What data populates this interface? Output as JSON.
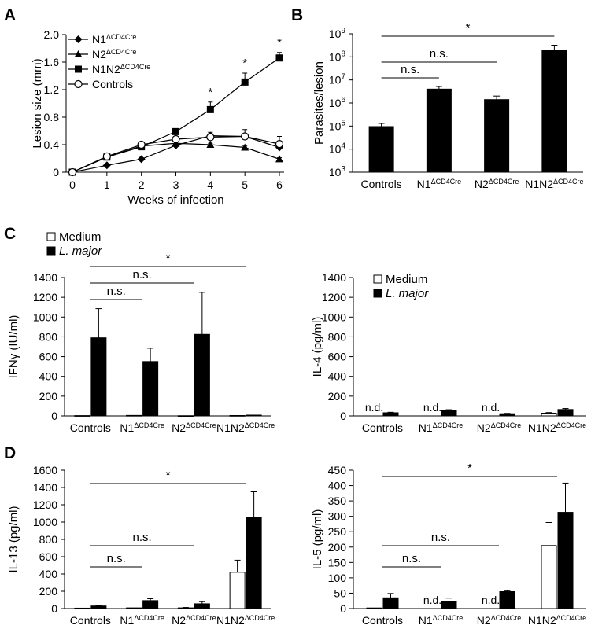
{
  "figure": {
    "panel_letters": [
      "A",
      "B",
      "C",
      "D"
    ]
  },
  "chart_data": [
    {
      "panel": "A",
      "type": "line",
      "xlabel": "Weeks of infection",
      "ylabel": "Lesion size (mm)",
      "x": [
        0,
        1,
        2,
        3,
        4,
        5,
        6
      ],
      "xlim": [
        0,
        6
      ],
      "ylim": [
        0,
        2.0
      ],
      "yticks": [
        "0",
        "0.4",
        "0.8",
        "1.2",
        "1.6",
        "2.0"
      ],
      "series": [
        {
          "name": "N1",
          "sup": "ΔCD4Cre",
          "marker": "diamond",
          "values": [
            0,
            0.1,
            0.19,
            0.39,
            0.53,
            0.52,
            0.36
          ],
          "errors": [
            0,
            0.02,
            0.02,
            0.02,
            0.03,
            0.03,
            0.03
          ]
        },
        {
          "name": "N2",
          "sup": "ΔCD4Cre",
          "marker": "triangle",
          "values": [
            0,
            0.22,
            0.38,
            0.42,
            0.4,
            0.36,
            0.19
          ],
          "errors": [
            0,
            0.02,
            0.02,
            0.02,
            0.02,
            0.02,
            0.02
          ]
        },
        {
          "name": "N1N2",
          "sup": "ΔCD4Cre",
          "marker": "square",
          "values": [
            0,
            0.22,
            0.37,
            0.59,
            0.91,
            1.31,
            1.66
          ],
          "errors": [
            0,
            0.02,
            0.03,
            0.03,
            0.11,
            0.13,
            0.08
          ]
        },
        {
          "name": "Controls",
          "sup": "",
          "marker": "circle",
          "values": [
            0,
            0.23,
            0.4,
            0.48,
            0.51,
            0.52,
            0.41
          ],
          "errors": [
            0,
            0.03,
            0.03,
            0.04,
            0.07,
            0.1,
            0.11
          ]
        }
      ],
      "significance_weeks": [
        4,
        5,
        6
      ],
      "significance_label": "*",
      "legend_position": "top-left"
    },
    {
      "panel": "B",
      "type": "bar",
      "ylabel": "Parasites/lesion",
      "yscale": "log",
      "ylim": [
        1000,
        1000000000
      ],
      "ytick_exponents": [
        "3",
        "4",
        "5",
        "6",
        "7",
        "8",
        "9"
      ],
      "categories": [
        {
          "name": "Controls",
          "sup": ""
        },
        {
          "name": "N1",
          "sup": "ΔCD4Cre"
        },
        {
          "name": "N2",
          "sup": "ΔCD4Cre"
        },
        {
          "name": "N1N2",
          "sup": "ΔCD4Cre"
        }
      ],
      "values": [
        95000,
        4000000,
        1400000,
        200000000
      ],
      "errors_upper": [
        130000,
        5200000,
        2000000,
        320000000
      ],
      "brackets": [
        {
          "from": 0,
          "to": 3,
          "label": "*"
        },
        {
          "from": 0,
          "to": 2,
          "label": "n.s."
        },
        {
          "from": 0,
          "to": 1,
          "label": "n.s."
        }
      ]
    },
    {
      "panel": "C",
      "type": "bar",
      "ylabel": "IFNγ (IU/ml)",
      "ylim": [
        0,
        1400
      ],
      "yticks": [
        "0",
        "200",
        "400",
        "600",
        "800",
        "1000",
        "1200",
        "1400"
      ],
      "categories": [
        {
          "name": "Controls",
          "sup": ""
        },
        {
          "name": "N1",
          "sup": "ΔCD4Cre"
        },
        {
          "name": "N2",
          "sup": "ΔCD4Cre"
        },
        {
          "name": "N1N2",
          "sup": "ΔCD4Cre"
        }
      ],
      "series": [
        {
          "name": "Medium",
          "values": [
            3,
            5,
            2,
            4
          ],
          "errors": [
            0,
            3,
            0,
            0
          ]
        },
        {
          "name": "L. major",
          "values": [
            790,
            550,
            825,
            8
          ],
          "errors": [
            295,
            135,
            425,
            3
          ]
        }
      ],
      "brackets": [
        {
          "from": 0,
          "to": 3,
          "label": "*"
        },
        {
          "from": 0,
          "to": 2,
          "label": "n.s."
        },
        {
          "from": 0,
          "to": 1,
          "label": "n.s."
        }
      ],
      "legend_position": "above-left"
    },
    {
      "panel": "C",
      "type": "bar",
      "ylabel": "IL-4 (pg/ml)",
      "ylim": [
        0,
        1400
      ],
      "yticks": [
        "0",
        "200",
        "400",
        "600",
        "800",
        "1000",
        "1200",
        "1400"
      ],
      "categories": [
        {
          "name": "Controls",
          "sup": ""
        },
        {
          "name": "N1",
          "sup": "ΔCD4Cre"
        },
        {
          "name": "N2",
          "sup": "ΔCD4Cre"
        },
        {
          "name": "N1N2",
          "sup": "ΔCD4Cre"
        }
      ],
      "series": [
        {
          "name": "Medium",
          "values": [
            0,
            0,
            0,
            28
          ],
          "errors": [
            0,
            0,
            0,
            6
          ]
        },
        {
          "name": "L. major",
          "values": [
            32,
            55,
            22,
            65
          ],
          "errors": [
            5,
            8,
            4,
            10
          ]
        }
      ],
      "not_detected": [
        0,
        1,
        2
      ],
      "nd_label": "n.d.",
      "legend_position": "top-left"
    },
    {
      "panel": "D",
      "type": "bar",
      "ylabel": "IL-13 (pg/ml)",
      "ylim": [
        0,
        1600
      ],
      "yticks": [
        "0",
        "200",
        "400",
        "600",
        "800",
        "1000",
        "1200",
        "1400",
        "1600"
      ],
      "categories": [
        {
          "name": "Controls",
          "sup": ""
        },
        {
          "name": "N1",
          "sup": "ΔCD4Cre"
        },
        {
          "name": "N2",
          "sup": "ΔCD4Cre"
        },
        {
          "name": "N1N2",
          "sup": "ΔCD4Cre"
        }
      ],
      "series": [
        {
          "name": "Medium",
          "values": [
            5,
            8,
            8,
            420
          ],
          "errors": [
            2,
            3,
            5,
            140
          ]
        },
        {
          "name": "L. major",
          "values": [
            30,
            92,
            55,
            1050
          ],
          "errors": [
            5,
            22,
            25,
            300
          ]
        }
      ],
      "brackets": [
        {
          "from": 0,
          "to": 3,
          "label": "*"
        },
        {
          "from": 0,
          "to": 2,
          "label": "n.s."
        },
        {
          "from": 0,
          "to": 1,
          "label": "n.s."
        }
      ]
    },
    {
      "panel": "D",
      "type": "bar",
      "ylabel": "IL-5 (pg/ml)",
      "ylim": [
        0,
        450
      ],
      "yticks": [
        "0",
        "50",
        "100",
        "150",
        "200",
        "250",
        "300",
        "350",
        "400",
        "450"
      ],
      "categories": [
        {
          "name": "Controls",
          "sup": ""
        },
        {
          "name": "N1",
          "sup": "ΔCD4Cre"
        },
        {
          "name": "N2",
          "sup": "ΔCD4Cre"
        },
        {
          "name": "N1N2",
          "sup": "ΔCD4Cre"
        }
      ],
      "series": [
        {
          "name": "Medium",
          "values": [
            2,
            0,
            0,
            205
          ],
          "errors": [
            0,
            0,
            0,
            75
          ]
        },
        {
          "name": "L. major",
          "values": [
            35,
            23,
            55,
            313
          ],
          "errors": [
            14,
            11,
            3,
            95
          ]
        }
      ],
      "not_detected": [
        1,
        2
      ],
      "nd_label": "n.d.",
      "brackets": [
        {
          "from": 0,
          "to": 3,
          "label": "*"
        },
        {
          "from": 0,
          "to": 2,
          "label": "n.s."
        },
        {
          "from": 0,
          "to": 1,
          "label": "n.s."
        }
      ]
    }
  ]
}
